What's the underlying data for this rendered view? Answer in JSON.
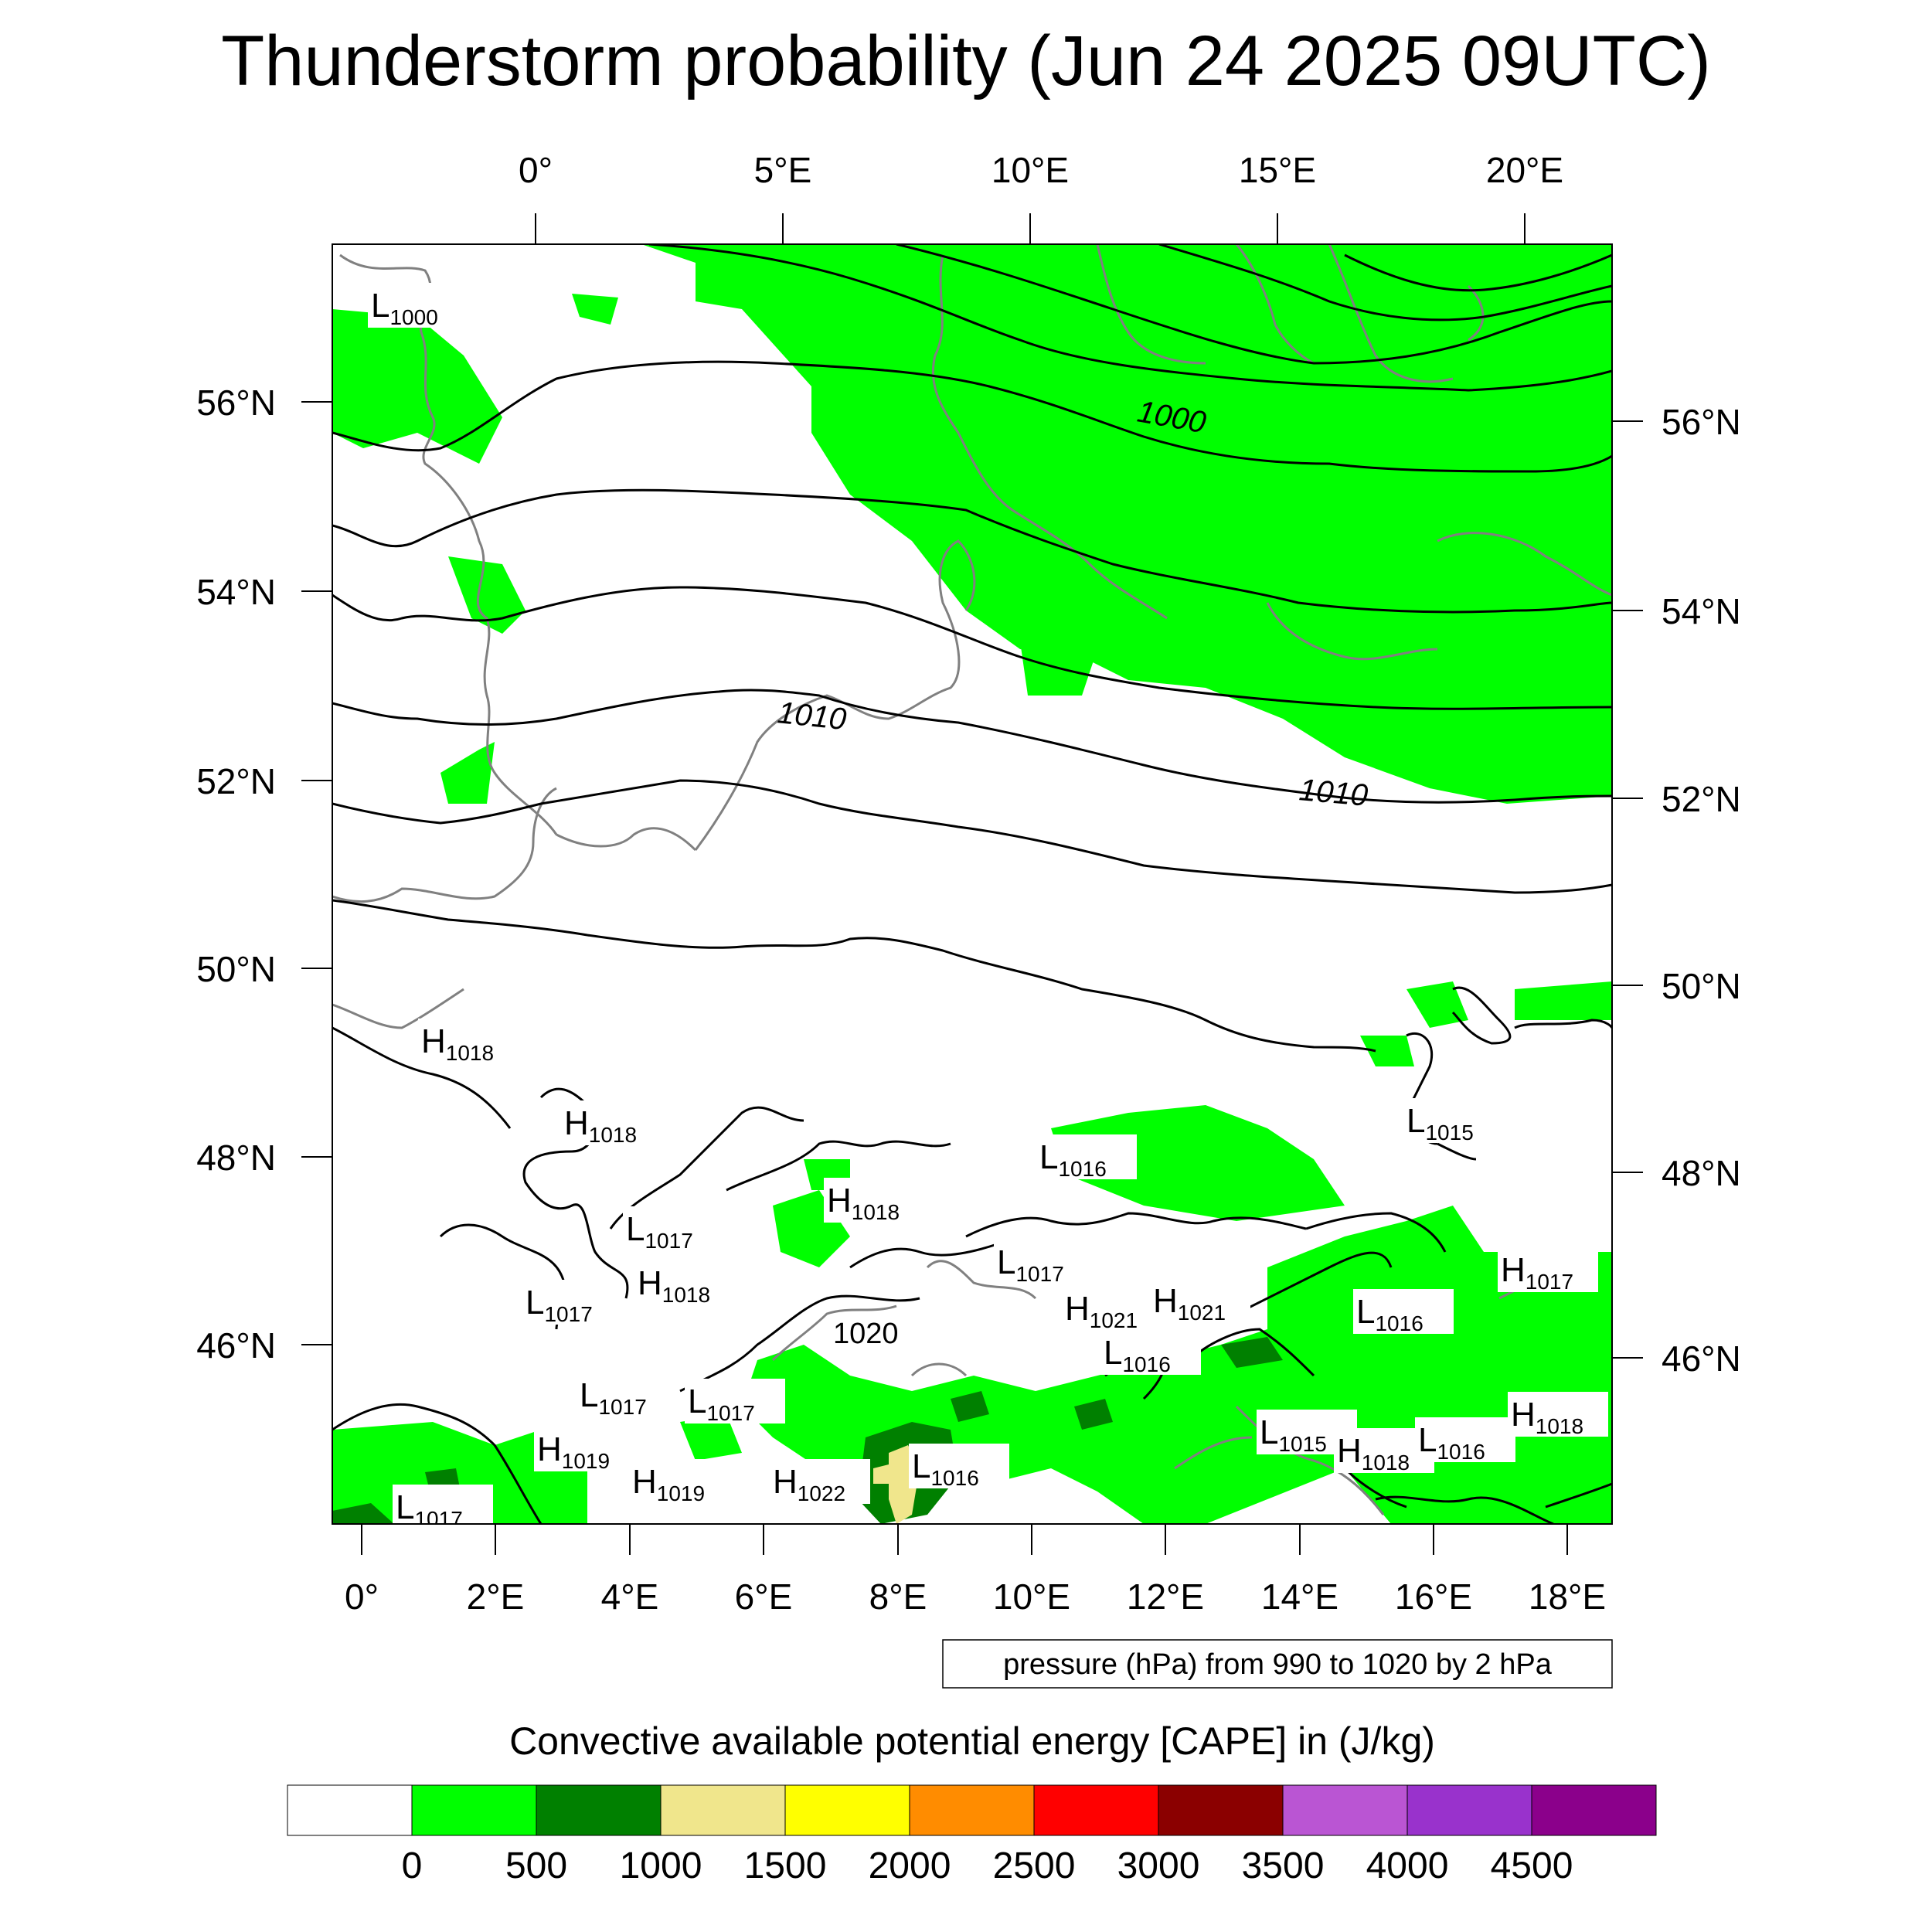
{
  "title": "Thunderstorm probability (Jun 24 2025 09UTC)",
  "top_axis": [
    "0°",
    "5°E",
    "10°E",
    "15°E",
    "20°E"
  ],
  "bottom_axis": [
    "0°",
    "2°E",
    "4°E",
    "6°E",
    "8°E",
    "10°E",
    "12°E",
    "14°E",
    "16°E",
    "18°E"
  ],
  "left_axis": [
    "56°N",
    "54°N",
    "52°N",
    "50°N",
    "48°N",
    "46°N"
  ],
  "right_axis": [
    "56°N",
    "54°N",
    "52°N",
    "50°N",
    "48°N",
    "46°N"
  ],
  "contour_note": "pressure (hPa) from 990 to 1020 by 2 hPa",
  "contour_labels": [
    "1000",
    "1010",
    "1010",
    "1020"
  ],
  "pressure_centers": [
    {
      "type": "L",
      "value": "1000"
    },
    {
      "type": "H",
      "value": "1018"
    },
    {
      "type": "H",
      "value": "1018"
    },
    {
      "type": "L",
      "value": "1017"
    },
    {
      "type": "L",
      "value": "1017"
    },
    {
      "type": "H",
      "value": "1018"
    },
    {
      "type": "H",
      "value": "1018"
    },
    {
      "type": "L",
      "value": "1017"
    },
    {
      "type": "L",
      "value": "1017"
    },
    {
      "type": "L",
      "value": "1016"
    },
    {
      "type": "L",
      "value": "1015"
    },
    {
      "type": "H",
      "value": "1021"
    },
    {
      "type": "H",
      "value": "1021"
    },
    {
      "type": "L",
      "value": "1016"
    },
    {
      "type": "L",
      "value": "1016"
    },
    {
      "type": "L",
      "value": "1015"
    },
    {
      "type": "H",
      "value": "1018"
    },
    {
      "type": "L",
      "value": "1016"
    },
    {
      "type": "H",
      "value": "1018"
    },
    {
      "type": "H",
      "value": "1017"
    },
    {
      "type": "H",
      "value": "1019"
    },
    {
      "type": "H",
      "value": "1019"
    },
    {
      "type": "H",
      "value": "1022"
    },
    {
      "type": "L",
      "value": "1016"
    },
    {
      "type": "L",
      "value": "1017"
    },
    {
      "type": "L",
      "value": "1017"
    }
  ],
  "colorbar": {
    "title": "Convective available potential energy [CAPE] in (J/kg)",
    "colors": [
      "#ffffff",
      "#00ff00",
      "#008000",
      "#f0e68c",
      "#ffff00",
      "#ff8c00",
      "#ff0000",
      "#8b0000",
      "#ba55d3",
      "#9932cc",
      "#8b008b"
    ],
    "labels": [
      "0",
      "500",
      "1000",
      "1500",
      "2000",
      "2500",
      "3000",
      "3500",
      "4000",
      "4500"
    ]
  }
}
